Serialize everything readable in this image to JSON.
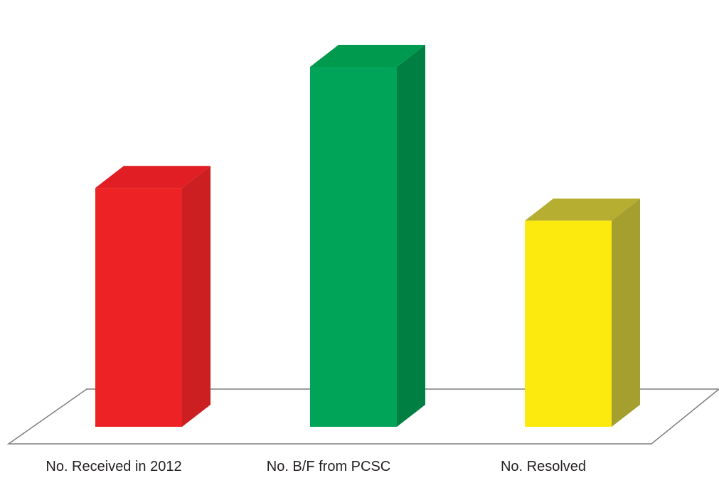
{
  "chart_data": {
    "type": "bar",
    "style": "3d-column",
    "title": "",
    "xlabel": "",
    "ylabel": "",
    "categories": [
      "No. Received in 2012",
      "No. B/F from PCSC",
      "No. Resolved"
    ],
    "values": [
      365,
      550,
      315
    ],
    "ylim": [
      0,
      600
    ],
    "grid": false,
    "legend": "none",
    "colors": {
      "front": [
        "#ed2224",
        "#00a459",
        "#fcea0f"
      ],
      "side": [
        "#cc1f22",
        "#007f42",
        "#a59f2f"
      ],
      "top": [
        "#e01e24",
        "#009a4e",
        "#b5ae30"
      ],
      "floor_stroke": "#7f7f7f"
    }
  }
}
